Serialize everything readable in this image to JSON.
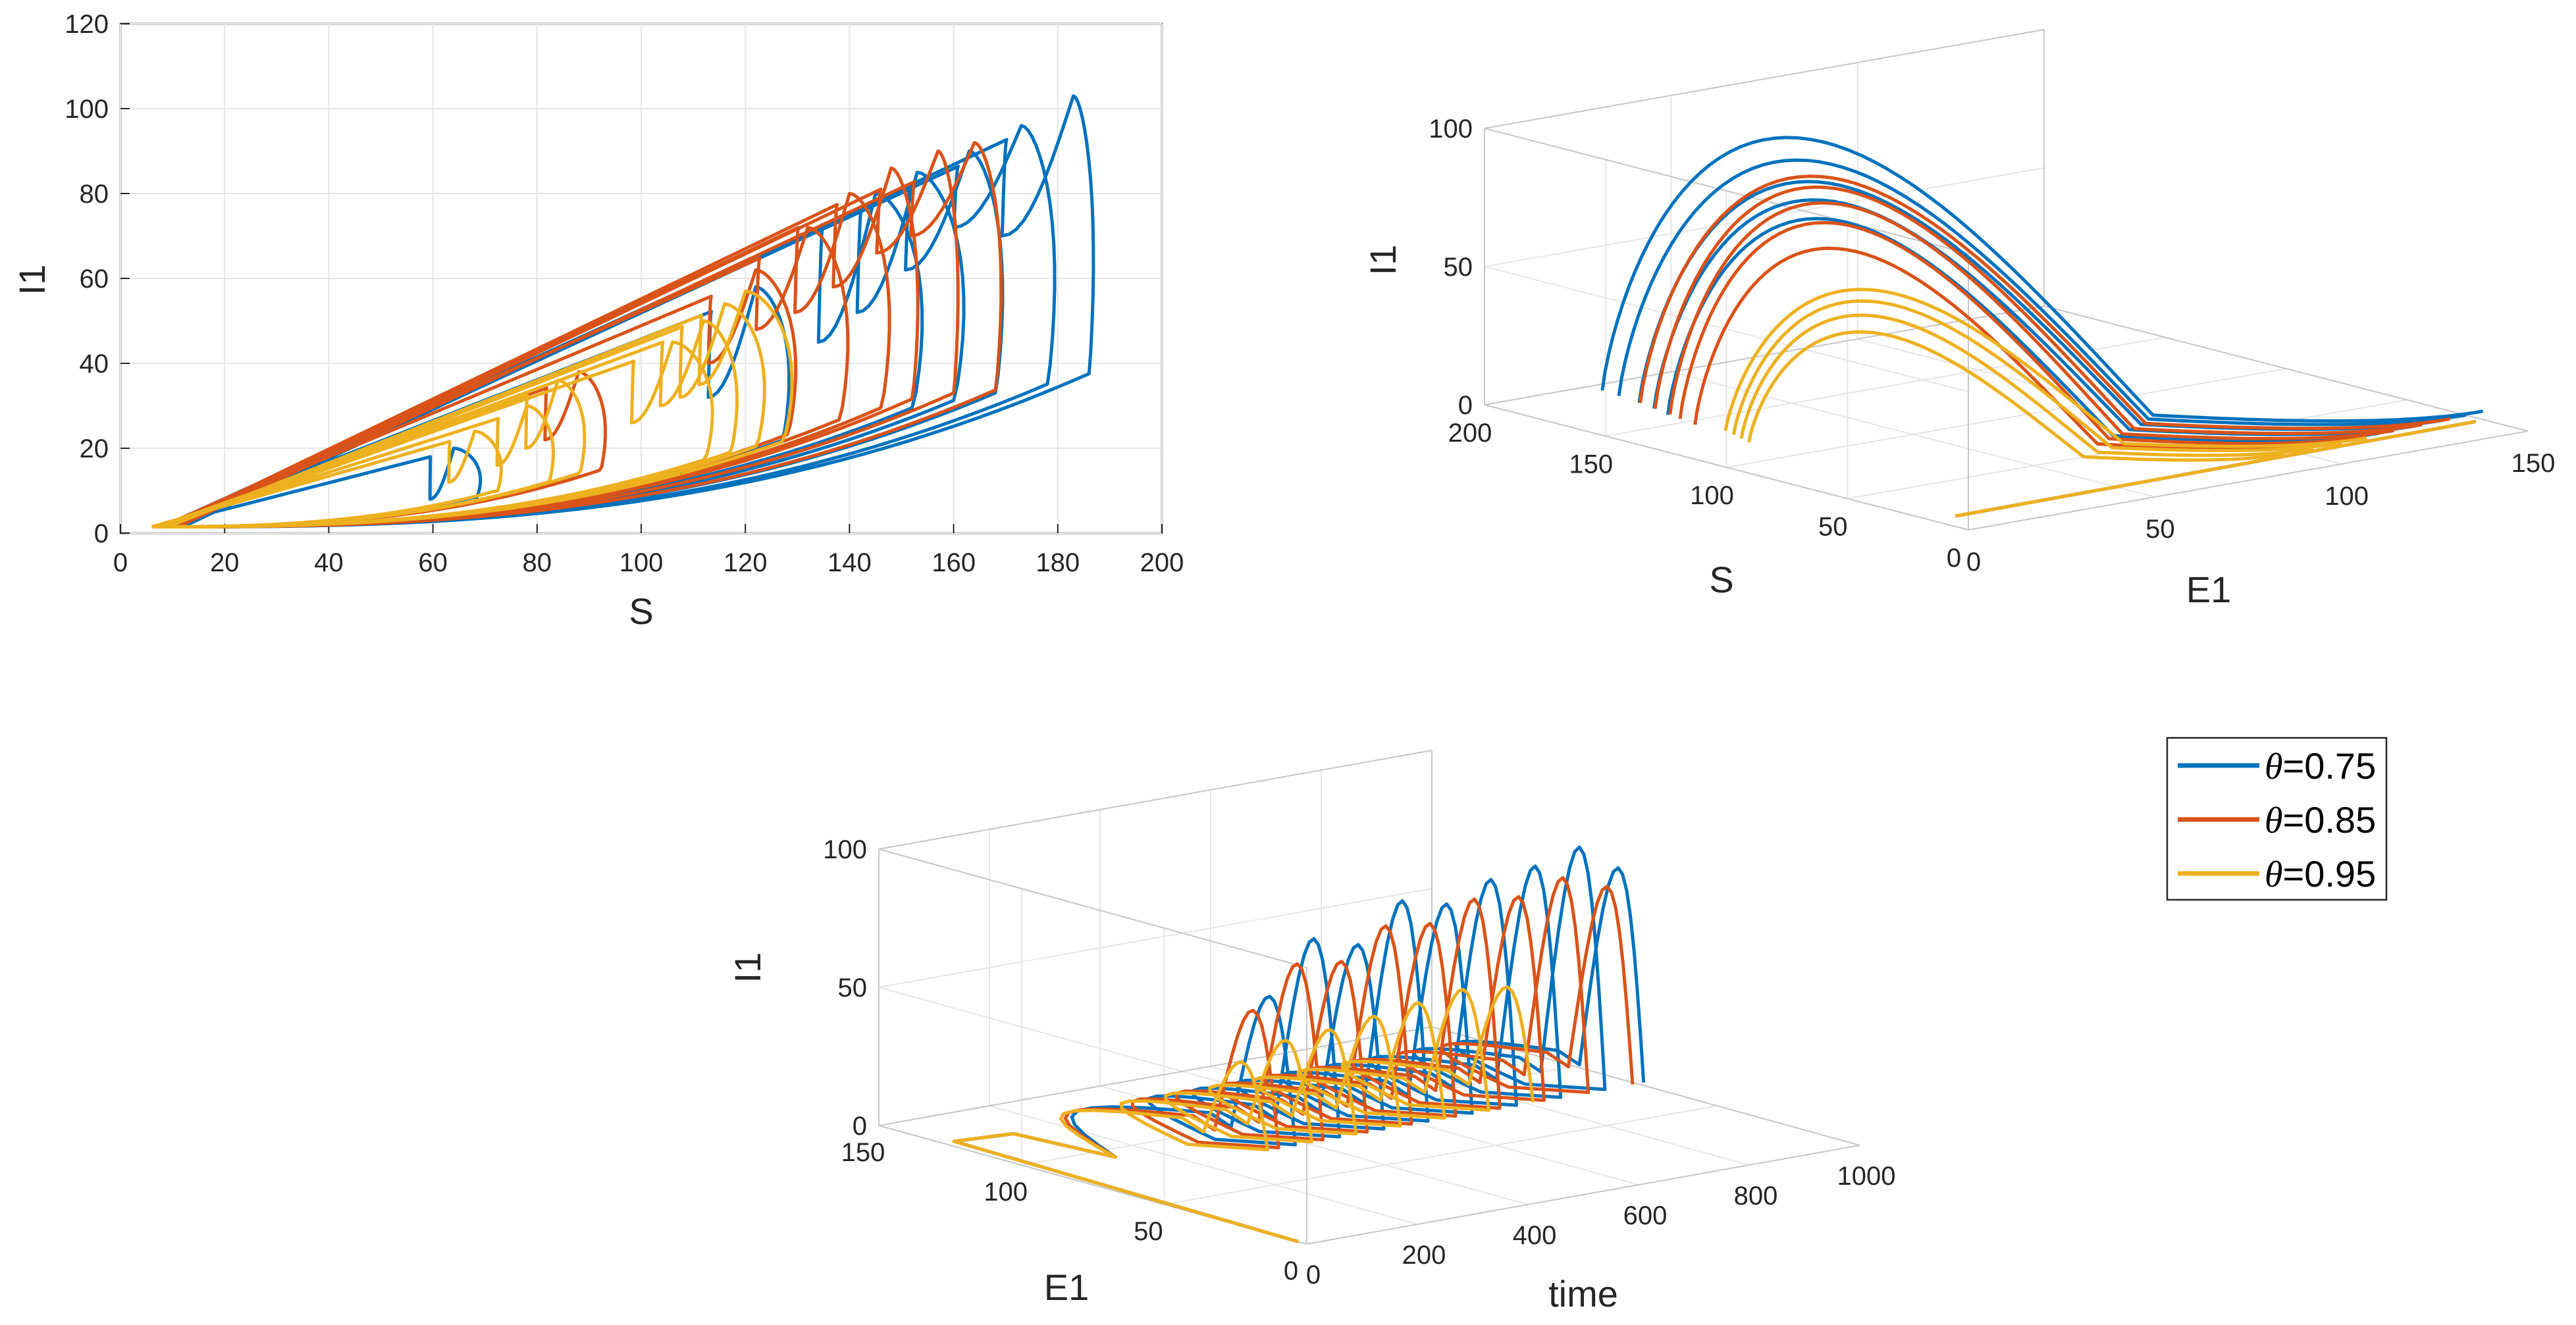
{
  "colors": {
    "series1": "#0072BD",
    "series2": "#D95319",
    "series3": "#EDB120",
    "grid": "#e6e6e6",
    "axis": "#262626"
  },
  "legend": {
    "symbol": "θ",
    "entries": [
      {
        "symbol": "θ",
        "value": "=0.75",
        "series": "series1"
      },
      {
        "symbol": "θ",
        "value": "=0.85",
        "series": "series2"
      },
      {
        "symbol": "θ",
        "value": "=0.95",
        "series": "series3"
      }
    ]
  },
  "chart_data": [
    {
      "type": "line",
      "title": "",
      "xlabel": "S",
      "ylabel": "I1",
      "xlim": [
        0,
        200
      ],
      "ylim": [
        0,
        120
      ],
      "xticks": [
        "0",
        "20",
        "40",
        "60",
        "80",
        "100",
        "120",
        "140",
        "160",
        "180",
        "200"
      ],
      "yticks": [
        "0",
        "20",
        "40",
        "60",
        "80",
        "100",
        "120"
      ],
      "grid": true,
      "series": [
        {
          "name": "θ=0.75",
          "color": "series1",
          "loops": [
            {
              "s0": 12,
              "peak": 103,
              "sMax": 186,
              "sPeak": 183,
              "dip": 70
            },
            {
              "s0": 11,
              "peak": 96,
              "sMax": 178,
              "sPeak": 173,
              "dip": 72
            },
            {
              "s0": 10,
              "peak": 90,
              "sMax": 168,
              "sPeak": 163,
              "dip": 62
            },
            {
              "s0": 9,
              "peak": 85,
              "sMax": 160,
              "sPeak": 153,
              "dip": 52
            },
            {
              "s0": 8,
              "peak": 80,
              "sMax": 152,
              "sPeak": 145,
              "dip": 45
            },
            {
              "s0": 8,
              "peak": 58,
              "sMax": 127,
              "sPeak": 122,
              "dip": 32
            },
            {
              "s0": 7,
              "peak": 20,
              "sMax": 68,
              "sPeak": 64,
              "dip": 8
            }
          ]
        },
        {
          "name": "θ=0.85",
          "color": "series2",
          "loops": [
            {
              "s0": 11,
              "peak": 92,
              "sMax": 168,
              "sPeak": 164,
              "dip": 70
            },
            {
              "s0": 10,
              "peak": 90,
              "sMax": 160,
              "sPeak": 157,
              "dip": 66
            },
            {
              "s0": 9,
              "peak": 86,
              "sMax": 152,
              "sPeak": 148,
              "dip": 58
            },
            {
              "s0": 9,
              "peak": 80,
              "sMax": 146,
              "sPeak": 140,
              "dip": 52
            },
            {
              "s0": 8,
              "peak": 72,
              "sMax": 138,
              "sPeak": 132,
              "dip": 48
            },
            {
              "s0": 8,
              "peak": 62,
              "sMax": 128,
              "sPeak": 122,
              "dip": 40
            },
            {
              "s0": 7,
              "peak": 38,
              "sMax": 92,
              "sPeak": 88,
              "dip": 22
            }
          ]
        },
        {
          "name": "θ=0.95",
          "color": "series3",
          "loops": [
            {
              "s0": 9,
              "peak": 57,
              "sMax": 127,
              "sPeak": 120,
              "dip": 35
            },
            {
              "s0": 9,
              "peak": 54,
              "sMax": 122,
              "sPeak": 116,
              "dip": 32
            },
            {
              "s0": 8,
              "peak": 50,
              "sMax": 117,
              "sPeak": 112,
              "dip": 30
            },
            {
              "s0": 8,
              "peak": 45,
              "sMax": 112,
              "sPeak": 106,
              "dip": 26
            },
            {
              "s0": 7,
              "peak": 36,
              "sMax": 88,
              "sPeak": 84,
              "dip": 20
            },
            {
              "s0": 7,
              "peak": 30,
              "sMax": 82,
              "sPeak": 78,
              "dip": 16
            },
            {
              "s0": 6,
              "peak": 24,
              "sMax": 72,
              "sPeak": 68,
              "dip": 12
            }
          ]
        }
      ]
    },
    {
      "type": "line",
      "projection": "3d",
      "title": "",
      "xlabel": "E1",
      "ylabel": "S",
      "zlabel": "I1",
      "xlim": [
        0,
        150
      ],
      "ylim": [
        0,
        200
      ],
      "zlim": [
        0,
        100
      ],
      "xticks": [
        "0",
        "50",
        "100",
        "150"
      ],
      "yticks": [
        "0",
        "50",
        "100",
        "150",
        "200"
      ],
      "zticks": [
        "0",
        "50",
        "100"
      ],
      "grid": true,
      "series": [
        {
          "name": "θ=0.75",
          "color": "series1",
          "loops": [
            {
              "e1": 150,
              "s": 186,
              "peak": 103
            },
            {
              "e1": 145,
              "s": 178,
              "peak": 96
            },
            {
              "e1": 138,
              "s": 168,
              "peak": 90
            },
            {
              "e1": 130,
              "s": 160,
              "peak": 85
            },
            {
              "e1": 120,
              "s": 152,
              "peak": 80
            }
          ]
        },
        {
          "name": "θ=0.85",
          "color": "series2",
          "loops": [
            {
              "e1": 140,
              "s": 168,
              "peak": 92
            },
            {
              "e1": 132,
              "s": 160,
              "peak": 90
            },
            {
              "e1": 124,
              "s": 152,
              "peak": 86
            },
            {
              "e1": 116,
              "s": 146,
              "peak": 80
            },
            {
              "e1": 108,
              "s": 138,
              "peak": 72
            }
          ]
        },
        {
          "name": "θ=0.95",
          "color": "series3",
          "loops": [
            {
              "e1": 115,
              "s": 127,
              "peak": 57
            },
            {
              "e1": 108,
              "s": 122,
              "peak": 54
            },
            {
              "e1": 100,
              "s": 117,
              "peak": 50
            },
            {
              "e1": 92,
              "s": 112,
              "peak": 45
            }
          ]
        }
      ]
    },
    {
      "type": "line",
      "projection": "3d",
      "title": "",
      "xlabel": "time",
      "ylabel": "E1",
      "zlabel": "I1",
      "xlim": [
        0,
        1000
      ],
      "ylim": [
        0,
        150
      ],
      "zlim": [
        0,
        100
      ],
      "xticks": [
        "0",
        "200",
        "400",
        "600",
        "800",
        "1000"
      ],
      "yticks": [
        "0",
        "50",
        "100",
        "150"
      ],
      "zticks": [
        "0",
        "50",
        "100"
      ],
      "grid": true,
      "series": [
        {
          "name": "θ=0.75",
          "color": "series1",
          "peakTimes": [
            250,
            330,
            410,
            490,
            570,
            650,
            730,
            810,
            880
          ],
          "peakValues": [
            62,
            80,
            75,
            88,
            84,
            90,
            92,
            96,
            86
          ]
        },
        {
          "name": "θ=0.85",
          "color": "series2",
          "peakTimes": [
            220,
            300,
            380,
            460,
            540,
            620,
            700,
            780,
            860
          ],
          "peakValues": [
            58,
            72,
            70,
            80,
            78,
            84,
            82,
            86,
            80
          ]
        },
        {
          "name": "θ=0.95",
          "color": "series3",
          "peakTimes": [
            200,
            280,
            360,
            440,
            520,
            600,
            680
          ],
          "peakValues": [
            40,
            45,
            46,
            48,
            50,
            52,
            50
          ]
        }
      ]
    }
  ]
}
